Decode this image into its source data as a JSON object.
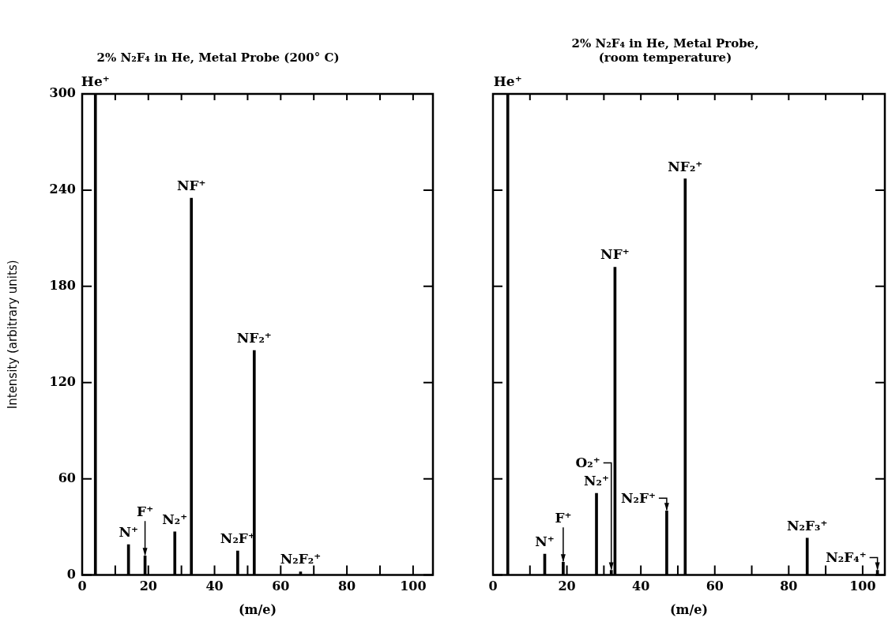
{
  "chart_data": [
    {
      "type": "bar",
      "title": "2% N₂F₄ in He, Metal Probe (200° C)",
      "xlabel": "(m/e)",
      "ylabel": "Intensity (arbitrary units)",
      "x": [
        4,
        14,
        19,
        28,
        33,
        47,
        52,
        66
      ],
      "values": [
        300,
        19,
        12,
        27,
        235,
        15,
        140,
        2
      ],
      "color": "#000000",
      "xlim": [
        0,
        106
      ],
      "ylim": [
        0,
        300
      ],
      "xticks": [
        0,
        {
          "value": 10,
          "label": null
        },
        20,
        {
          "value": 30,
          "label": null
        },
        40,
        {
          "value": 50,
          "label": null
        },
        60,
        {
          "value": 70,
          "label": null
        },
        80,
        {
          "value": 90,
          "label": null
        },
        100
      ],
      "yticks": [
        0,
        60,
        120,
        180,
        240,
        300
      ],
      "annotations": [
        {
          "text": "He⁺",
          "x": 4,
          "y": 300
        },
        {
          "text": "N⁺",
          "x": 14,
          "y": 19
        },
        {
          "text": "F⁺",
          "x": 19,
          "y": 12
        },
        {
          "text": "N₂⁺",
          "x": 28,
          "y": 27
        },
        {
          "text": "NF⁺",
          "x": 33,
          "y": 235
        },
        {
          "text": "N₂F⁺",
          "x": 47,
          "y": 15
        },
        {
          "text": "NF₂⁺",
          "x": 52,
          "y": 140
        },
        {
          "text": "N₂F₂⁺",
          "x": 66,
          "y": 2
        }
      ],
      "grid": false,
      "legend": false
    },
    {
      "type": "bar",
      "title": "2% N₂F₄ in He, Metal Probe,\n(room temperature)",
      "xlabel": "(m/e)",
      "x": [
        4,
        14,
        19,
        28,
        32,
        33,
        47,
        52,
        85,
        104
      ],
      "values": [
        300,
        13,
        8,
        51,
        3,
        192,
        40,
        247,
        23,
        3
      ],
      "color": "#000000",
      "xlim": [
        0,
        106
      ],
      "ylim": [
        0,
        300
      ],
      "xticks": [
        0,
        {
          "value": 10,
          "label": null
        },
        20,
        {
          "value": 30,
          "label": null
        },
        40,
        {
          "value": 50,
          "label": null
        },
        60,
        {
          "value": 70,
          "label": null
        },
        80,
        {
          "value": 90,
          "label": null
        },
        100
      ],
      "yticks": [
        0,
        60,
        120,
        180,
        240,
        300
      ],
      "tick_labels": "x",
      "annotations": [
        {
          "text": "He⁺",
          "x": 4,
          "y": 300
        },
        {
          "text": "N⁺",
          "x": 14,
          "y": 13
        },
        {
          "text": "F⁺",
          "x": 19,
          "y": 8
        },
        {
          "text": "N₂⁺",
          "x": 28,
          "y": 51
        },
        {
          "text": "O₂⁺",
          "x": 32,
          "y": 3
        },
        {
          "text": "NF⁺",
          "x": 33,
          "y": 192
        },
        {
          "text": "N₂F⁺",
          "x": 47,
          "y": 40
        },
        {
          "text": "NF₂⁺",
          "x": 52,
          "y": 247
        },
        {
          "text": "N₂F₃⁺",
          "x": 85,
          "y": 23
        },
        {
          "text": "N₂F₄⁺",
          "x": 104,
          "y": 3
        }
      ],
      "grid": false,
      "legend": false
    }
  ]
}
